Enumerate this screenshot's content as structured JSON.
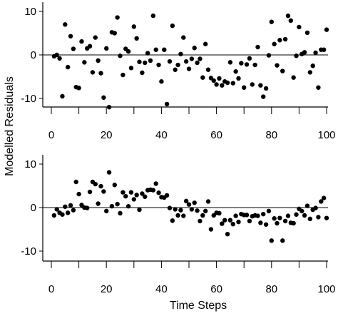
{
  "chart_data": [
    {
      "type": "scatter",
      "xlim": [
        0,
        100
      ],
      "ylim": [
        -12,
        12
      ],
      "xticks": [
        0,
        10,
        20,
        30,
        40,
        50,
        60,
        70,
        80,
        90,
        100
      ],
      "xtick_labels": [
        "0",
        "20",
        "40",
        "60",
        "80",
        "100"
      ],
      "xtick_label_values": [
        0,
        20,
        40,
        60,
        80,
        100
      ],
      "yticks": [
        -10,
        0,
        10
      ],
      "ytick_labels": [
        "-10",
        "0",
        "10"
      ],
      "zero_line": true,
      "x": [
        1,
        2,
        3,
        4,
        5,
        6,
        7,
        8,
        9,
        10,
        11,
        12,
        13,
        14,
        15,
        16,
        17,
        18,
        19,
        20,
        21,
        22,
        23,
        24,
        25,
        26,
        27,
        28,
        29,
        30,
        31,
        32,
        33,
        34,
        35,
        36,
        37,
        38,
        39,
        40,
        41,
        42,
        43,
        44,
        45,
        46,
        47,
        48,
        49,
        50,
        51,
        52,
        53,
        54,
        55,
        56,
        57,
        58,
        59,
        60,
        61,
        62,
        63,
        64,
        65,
        66,
        67,
        68,
        69,
        70,
        71,
        72,
        73,
        74,
        75,
        76,
        77,
        78,
        79,
        80,
        81,
        82,
        83,
        84,
        85,
        86,
        87,
        88,
        89,
        90,
        91,
        92,
        93,
        94,
        95,
        96,
        97,
        98,
        99,
        100
      ],
      "y": [
        -0.3,
        0,
        -0.8,
        -9.5,
        7,
        -2.8,
        4.3,
        1.4,
        -7.4,
        -7.6,
        3.1,
        -1.7,
        1.5,
        2,
        -4,
        4,
        -1.3,
        -4.2,
        -9.8,
        1.5,
        -12,
        5.2,
        5,
        8.6,
        -0.2,
        -4.6,
        1.4,
        0.8,
        -3,
        6.5,
        3.8,
        -1.6,
        -4.1,
        -1.8,
        0.4,
        -1.3,
        9,
        1.2,
        -2.3,
        -6.1,
        1.2,
        -11.3,
        -1.5,
        6.7,
        -3.4,
        -2.3,
        0.2,
        4,
        -1.5,
        -3.2,
        -0.9,
        1.6,
        -1.8,
        -0.9,
        -5.2,
        2.5,
        -3.4,
        -5.3,
        -5.9,
        -6.8,
        -5.4,
        -7,
        -6.1,
        -6.4,
        -1.7,
        -6.5,
        -3.8,
        -5.4,
        -1.9,
        -7.5,
        -2.2,
        -0.8,
        -6.8,
        -2.3,
        1.8,
        -7,
        -9.6,
        -7.7,
        -0.1,
        7.6,
        2.5,
        -2.4,
        3.4,
        -3.7,
        3.6,
        9,
        7.9,
        -5.2,
        -0.2,
        6.4,
        0.2,
        0.6,
        5.1,
        -4,
        -2.5,
        0.5,
        -7.5,
        1.2,
        1.2,
        5.8
      ]
    },
    {
      "type": "scatter",
      "xlim": [
        0,
        100
      ],
      "ylim": [
        -12,
        12
      ],
      "xticks": [
        0,
        10,
        20,
        30,
        40,
        50,
        60,
        70,
        80,
        90,
        100
      ],
      "xtick_labels": [
        "0",
        "20",
        "40",
        "60",
        "80",
        "100"
      ],
      "xtick_label_values": [
        0,
        20,
        40,
        60,
        80,
        100
      ],
      "yticks": [
        -10,
        0,
        10
      ],
      "ytick_labels": [
        "-10",
        "0",
        "10"
      ],
      "zero_line": true,
      "x": [
        1,
        2,
        3,
        4,
        5,
        6,
        7,
        8,
        9,
        10,
        11,
        12,
        13,
        14,
        15,
        16,
        17,
        18,
        19,
        20,
        21,
        22,
        23,
        24,
        25,
        26,
        27,
        28,
        29,
        30,
        31,
        32,
        33,
        34,
        35,
        36,
        37,
        38,
        39,
        40,
        41,
        42,
        43,
        44,
        45,
        46,
        47,
        48,
        49,
        50,
        51,
        52,
        53,
        54,
        55,
        56,
        57,
        58,
        59,
        60,
        61,
        62,
        63,
        64,
        65,
        66,
        67,
        68,
        69,
        70,
        71,
        72,
        73,
        74,
        75,
        76,
        77,
        78,
        79,
        80,
        81,
        82,
        83,
        84,
        85,
        86,
        87,
        88,
        89,
        90,
        91,
        92,
        93,
        94,
        95,
        96,
        97,
        98,
        99,
        100
      ],
      "y": [
        -1.8,
        -0.4,
        -1.2,
        -1.6,
        0.2,
        -1.2,
        0.5,
        -0.6,
        5.9,
        3.1,
        0.6,
        0,
        -0.1,
        3.6,
        5.9,
        5.4,
        0.9,
        4.9,
        3.7,
        -0.8,
        8.1,
        0.3,
        5.2,
        0.8,
        -1.3,
        3.5,
        2.6,
        0.3,
        3.5,
        1.9,
        2.9,
        -0.5,
        3.2,
        2.5,
        4,
        4.1,
        4,
        5.5,
        3.4,
        2.4,
        2.3,
        2.8,
        -0.1,
        -3,
        -0.4,
        -1.8,
        -0.6,
        -1.9,
        1.5,
        0.7,
        -0.4,
        1.1,
        -0.7,
        -3.1,
        -1.8,
        -0.8,
        1.4,
        -5,
        -1.8,
        -1.2,
        -1.3,
        -3.7,
        -2.9,
        -6.1,
        -2.9,
        -3.8,
        -1.9,
        -3.3,
        -1.5,
        -1.7,
        -1.7,
        -3.1,
        -2,
        -1.8,
        -1.9,
        -3.5,
        -1.5,
        -3.9,
        -0.8,
        -7.6,
        -2.5,
        -3.6,
        -2.4,
        -7.6,
        -3.1,
        -1.9,
        -3.5,
        -3.6,
        -1.6,
        -0.3,
        -0.8,
        -1.8,
        0.4,
        -2.6,
        -0.5,
        -0.1,
        -2.2,
        1.4,
        2.2,
        -2.4
      ]
    }
  ],
  "y_axis_title": "Modelled  Residuals",
  "x_axis_title": "Time Steps"
}
